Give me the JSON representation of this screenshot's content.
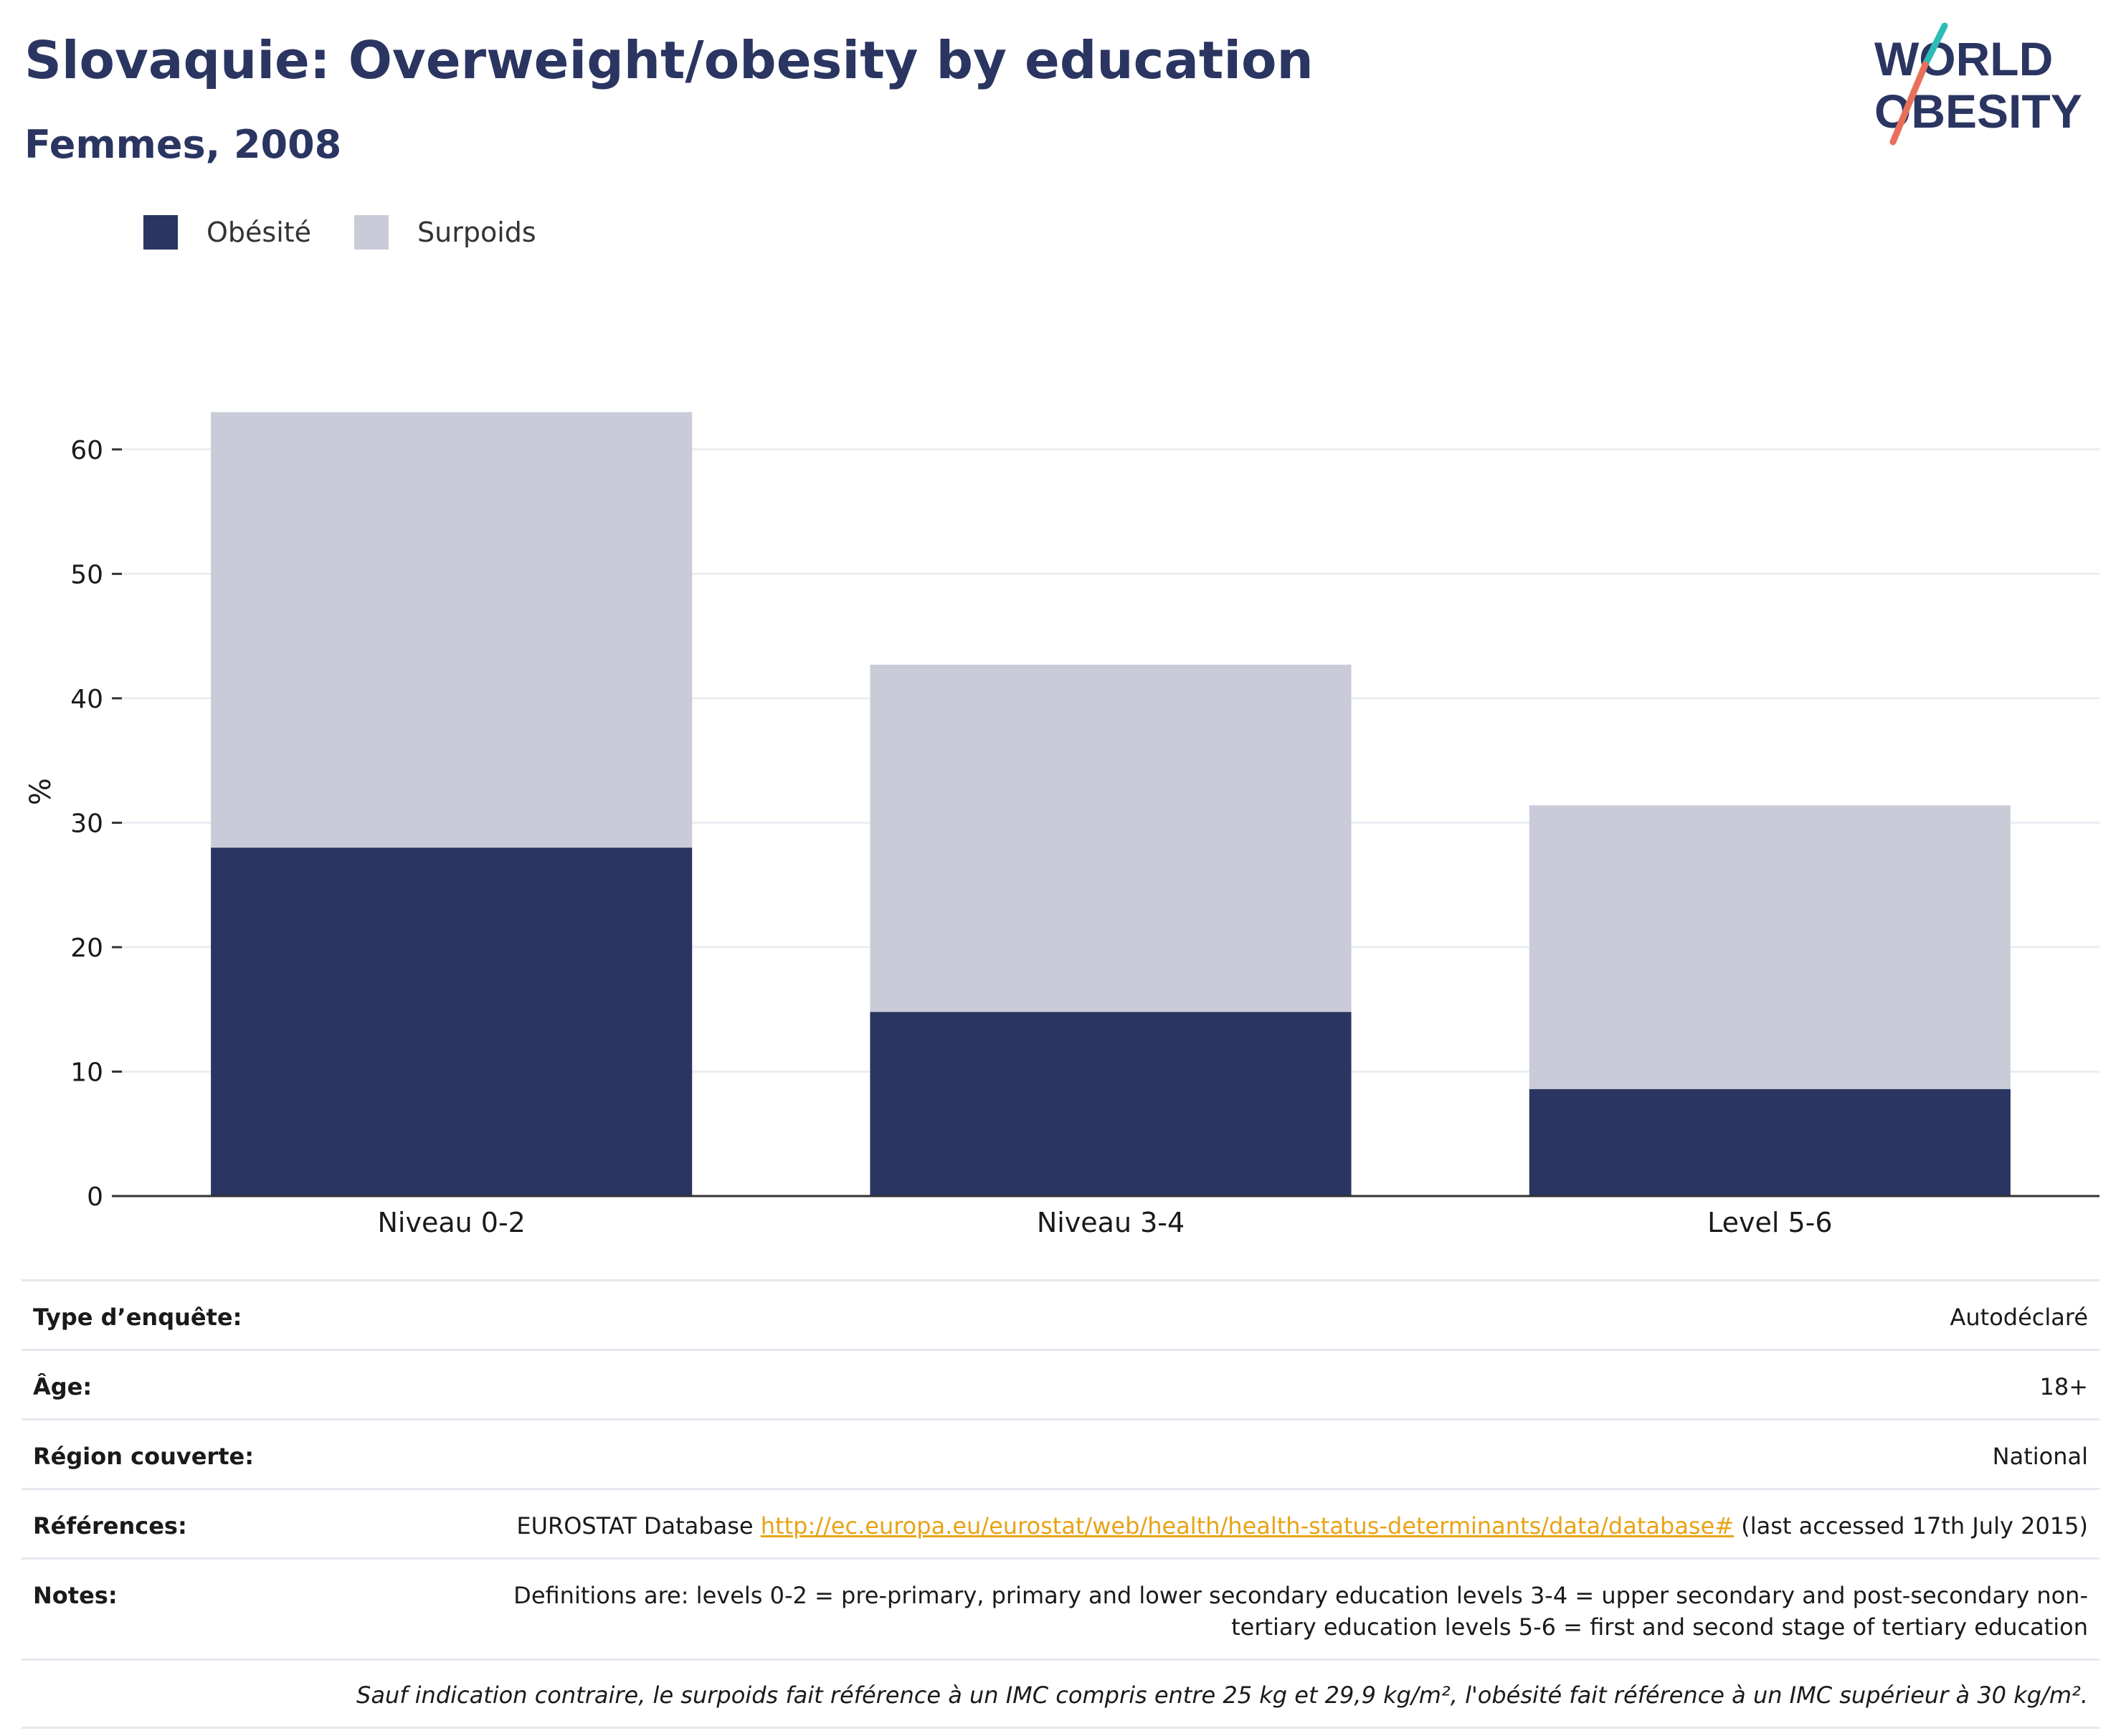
{
  "header": {
    "title": "Slovaquie: Overweight/obesity by education",
    "subtitle": "Femmes, 2008"
  },
  "logo": {
    "line1": "WORLD",
    "line2": "OBESITY"
  },
  "colors": {
    "obesity": "#2a3561",
    "overweight": "#c9ccd8",
    "text_dark": "#2a3561",
    "link": "#e8a317",
    "logo_teal": "#2bbcb5",
    "logo_coral": "#e8705a"
  },
  "chart_data": {
    "type": "bar",
    "stacked": true,
    "categories": [
      "Niveau 0-2",
      "Niveau 3-4",
      "Level 5-6"
    ],
    "series": [
      {
        "name": "Obésité",
        "values": [
          28.0,
          14.8,
          8.6
        ]
      },
      {
        "name": "Surpoids",
        "values": [
          35.0,
          27.9,
          22.8
        ]
      }
    ],
    "totals": [
      63.0,
      42.7,
      31.4
    ],
    "ylabel": "%",
    "xlabel": "",
    "ylim": [
      0,
      65
    ],
    "yticks": [
      0,
      10,
      20,
      30,
      40,
      50,
      60
    ],
    "grid": true,
    "legend": "top-left"
  },
  "info": {
    "rows": [
      {
        "label": "Type d’enquête:",
        "value": "Autodéclaré"
      },
      {
        "label": "Âge:",
        "value": "18+"
      },
      {
        "label": "Région couverte:",
        "value": "National"
      }
    ],
    "references": {
      "label": "Références:",
      "prefix": "EUROSTAT Database ",
      "link": "http://ec.europa.eu/eurostat/web/health/health-status-determinants/data/database#",
      "suffix": " (last accessed 17th July 2015)"
    },
    "notes": {
      "label": "Notes:",
      "value": "Definitions are: levels 0-2 = pre-primary, primary and lower secondary education levels 3-4 = upper secondary and post-secondary non-tertiary education levels 5-6 = first and second stage of tertiary education"
    },
    "footnote": "Sauf indication contraire, le surpoids fait référence à un IMC compris entre 25 kg et 29,9 kg/m², l'obésité fait référence à un IMC supérieur à 30 kg/m²."
  }
}
